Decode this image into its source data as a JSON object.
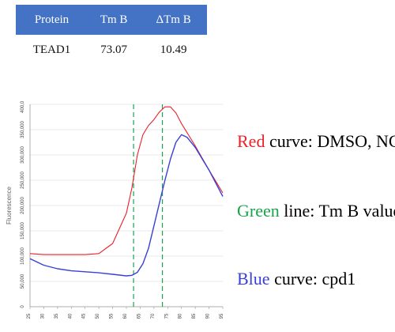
{
  "table": {
    "headers": [
      "Protein",
      "Tm B",
      "ΔTm B"
    ],
    "rows": [
      [
        "TEAD1",
        "73.07",
        "10.49"
      ]
    ],
    "header_color": "#4472c4"
  },
  "legend": [
    {
      "colored": "Red",
      "rest": " curve: DMSO, NC",
      "color": "#e8212a"
    },
    {
      "colored": "Green",
      "rest": " line: Tm B value",
      "color": "#19a34a"
    },
    {
      "colored": "Blue",
      "rest": " curve: cpd1",
      "color": "#3a3fd6"
    }
  ],
  "chart_data": {
    "type": "line",
    "xlabel": "",
    "ylabel": "Fluorescence",
    "xlim": [
      25,
      95
    ],
    "ylim": [
      0,
      400000
    ],
    "x_ticks": [
      "25",
      "30",
      "35",
      "40",
      "45",
      "50",
      "55",
      "60",
      "65",
      "70",
      "75",
      "80",
      "85",
      "90",
      "95"
    ],
    "y_ticks": [
      "0",
      "50,000",
      "100,000",
      "150,000",
      "200,000",
      "250,000",
      "300,000",
      "350,000",
      "400,000"
    ],
    "grid": "horizontal",
    "series": [
      {
        "color": "#e8212a",
        "x": [
          25,
          30,
          35,
          40,
          45,
          50,
          55,
          60,
          62,
          64,
          66,
          68,
          70,
          72,
          74,
          76,
          78,
          80,
          85,
          90,
          95
        ],
        "y": [
          105000,
          103000,
          103000,
          103000,
          103000,
          105000,
          125000,
          185000,
          235000,
          300000,
          340000,
          358000,
          370000,
          385000,
          395000,
          395000,
          383000,
          362000,
          318000,
          270000,
          225000
        ]
      },
      {
        "color": "#3a3fd6",
        "x": [
          25,
          30,
          35,
          40,
          45,
          50,
          55,
          60,
          62,
          64,
          66,
          68,
          70,
          72,
          74,
          76,
          78,
          80,
          82,
          85,
          90,
          95
        ],
        "y": [
          95000,
          82000,
          75000,
          71000,
          69000,
          67000,
          64000,
          61000,
          62000,
          68000,
          85000,
          115000,
          160000,
          205000,
          250000,
          292000,
          325000,
          340000,
          335000,
          315000,
          270000,
          218000
        ]
      }
    ],
    "vlines": [
      {
        "x": 62.6,
        "color": "#19a34a",
        "dash": true
      },
      {
        "x": 73.07,
        "color": "#19a34a",
        "dash": true
      }
    ]
  }
}
